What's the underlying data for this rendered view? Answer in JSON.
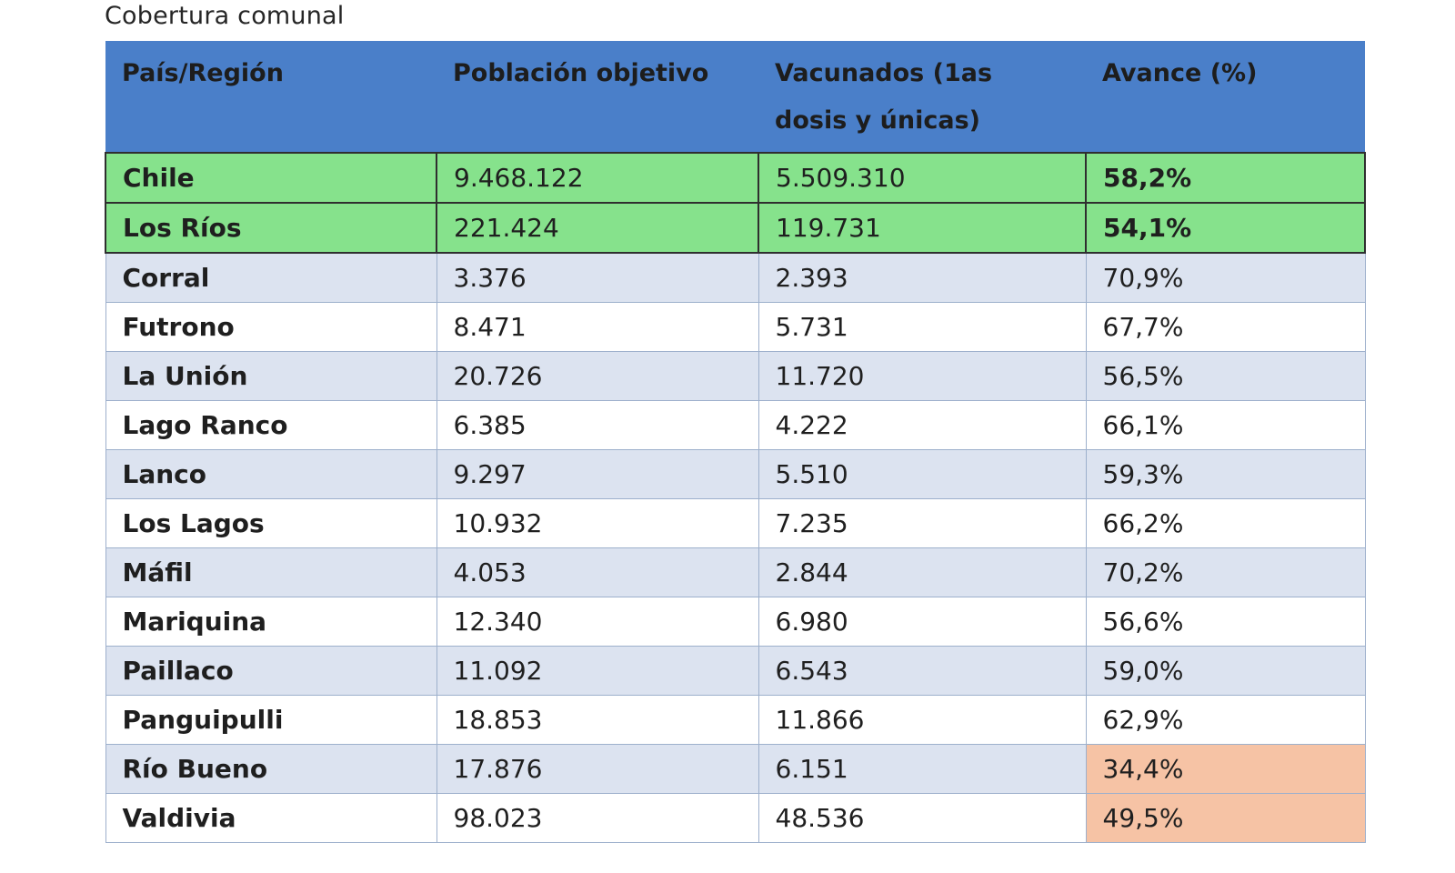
{
  "caption": "Cobertura comunal",
  "table": {
    "headers": [
      "País/Región",
      "Población objetivo",
      "Vacunados (1as dosis y únicas)",
      "Avance (%)"
    ],
    "rows": [
      {
        "name": "Chile",
        "population": "9.468.122",
        "vaccinated": "5.509.310",
        "progress": "58,2%"
      },
      {
        "name": "Los Ríos",
        "population": "221.424",
        "vaccinated": "119.731",
        "progress": "54,1%"
      },
      {
        "name": "Corral",
        "population": "3.376",
        "vaccinated": "2.393",
        "progress": "70,9%"
      },
      {
        "name": "Futrono",
        "population": "8.471",
        "vaccinated": "5.731",
        "progress": "67,7%"
      },
      {
        "name": "La Unión",
        "population": "20.726",
        "vaccinated": "11.720",
        "progress": "56,5%"
      },
      {
        "name": "Lago Ranco",
        "population": "6.385",
        "vaccinated": "4.222",
        "progress": "66,1%"
      },
      {
        "name": "Lanco",
        "population": "9.297",
        "vaccinated": "5.510",
        "progress": "59,3%"
      },
      {
        "name": "Los Lagos",
        "population": "10.932",
        "vaccinated": "7.235",
        "progress": "66,2%"
      },
      {
        "name": "Máfil",
        "population": "4.053",
        "vaccinated": "2.844",
        "progress": "70,2%"
      },
      {
        "name": "Mariquina",
        "population": "12.340",
        "vaccinated": "6.980",
        "progress": "56,6%"
      },
      {
        "name": "Paillaco",
        "population": "11.092",
        "vaccinated": "6.543",
        "progress": "59,0%"
      },
      {
        "name": "Panguipulli",
        "population": "18.853",
        "vaccinated": "11.866",
        "progress": "62,9%"
      },
      {
        "name": "Río Bueno",
        "population": "17.876",
        "vaccinated": "6.151",
        "progress": "34,4%"
      },
      {
        "name": "Valdivia",
        "population": "98.023",
        "vaccinated": "48.536",
        "progress": "49,5%"
      }
    ]
  },
  "colors": {
    "header": "#4a7fc9",
    "summary_row": "#86e28c",
    "band_row": "#dce3f0",
    "alert_cell": "#f6c3a5"
  }
}
